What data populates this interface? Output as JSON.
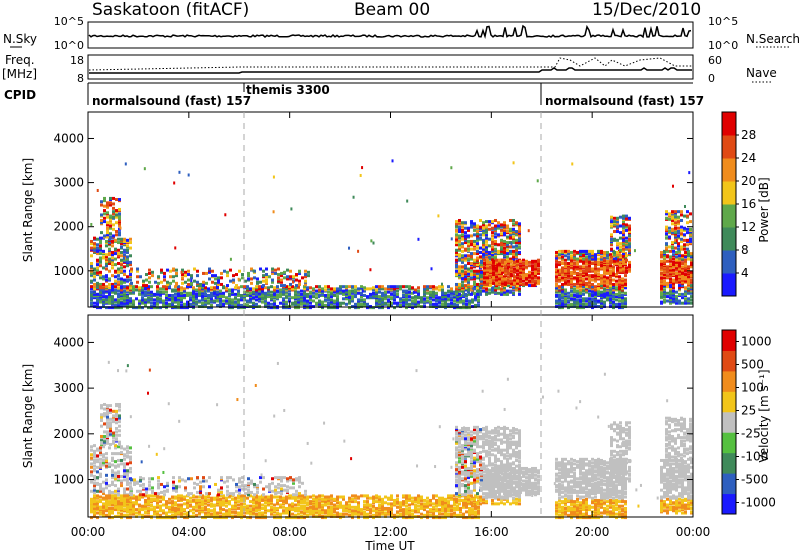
{
  "header": {
    "title": "Saskatoon (fitACF)",
    "beam": "Beam 00",
    "date": "15/Dec/2010"
  },
  "nsky_panel": {
    "label": "N.Sky",
    "right_label": "N.Search",
    "ticks_left": [
      "10^5",
      "10^0"
    ],
    "ticks_right": [
      "10^5",
      "10^0"
    ]
  },
  "freq_panel": {
    "label": "Freq.",
    "unit": "[MHz]",
    "ticks_left": [
      "18",
      "8"
    ],
    "right_label": "Nave",
    "ticks_right": [
      "60",
      "0"
    ]
  },
  "cpid": {
    "label": "CPID",
    "modes": [
      {
        "name": "normalsound (fast) 157",
        "start": "00:00",
        "end": "06:00"
      },
      {
        "name": "themis 3300",
        "start": "06:00",
        "end": "18:00"
      },
      {
        "name": "normalsound (fast) 157",
        "start": "18:00",
        "end": "24:00"
      }
    ]
  },
  "chart_data": [
    {
      "type": "heatmap",
      "name": "power",
      "ylabel": "Slant Range [km]",
      "ylim": [
        180,
        4600
      ],
      "yticks": [
        "1000",
        "2000",
        "3000",
        "4000"
      ],
      "colorbar": {
        "label": "Power [dB]",
        "ticks": [
          "4",
          "8",
          "12",
          "16",
          "20",
          "24",
          "28"
        ],
        "colors": [
          "#1a1aff",
          "#2e5fbf",
          "#3f8a5a",
          "#5fa84a",
          "#f2c51a",
          "#f08c1c",
          "#e04a14",
          "#e00000"
        ]
      }
    },
    {
      "type": "heatmap",
      "name": "velocity",
      "ylabel": "Slant Range [km]",
      "ylim": [
        180,
        4600
      ],
      "yticks": [
        "1000",
        "2000",
        "3000",
        "4000"
      ],
      "xlabel": "Time UT",
      "xticks": [
        "00:00",
        "04:00",
        "08:00",
        "12:00",
        "16:00",
        "20:00",
        "00:00"
      ],
      "colorbar": {
        "label": "Velocity [m s⁻¹]",
        "ticks": [
          "1000",
          "500",
          "100",
          "25",
          "-25",
          "-100",
          "-500",
          "-1000"
        ],
        "colors": [
          "#1a1aff",
          "#2e5fbf",
          "#3f8a5a",
          "#55c040",
          "#c0c0c0",
          "#f2c51a",
          "#f08c1c",
          "#e04a14",
          "#e00000"
        ]
      }
    }
  ]
}
